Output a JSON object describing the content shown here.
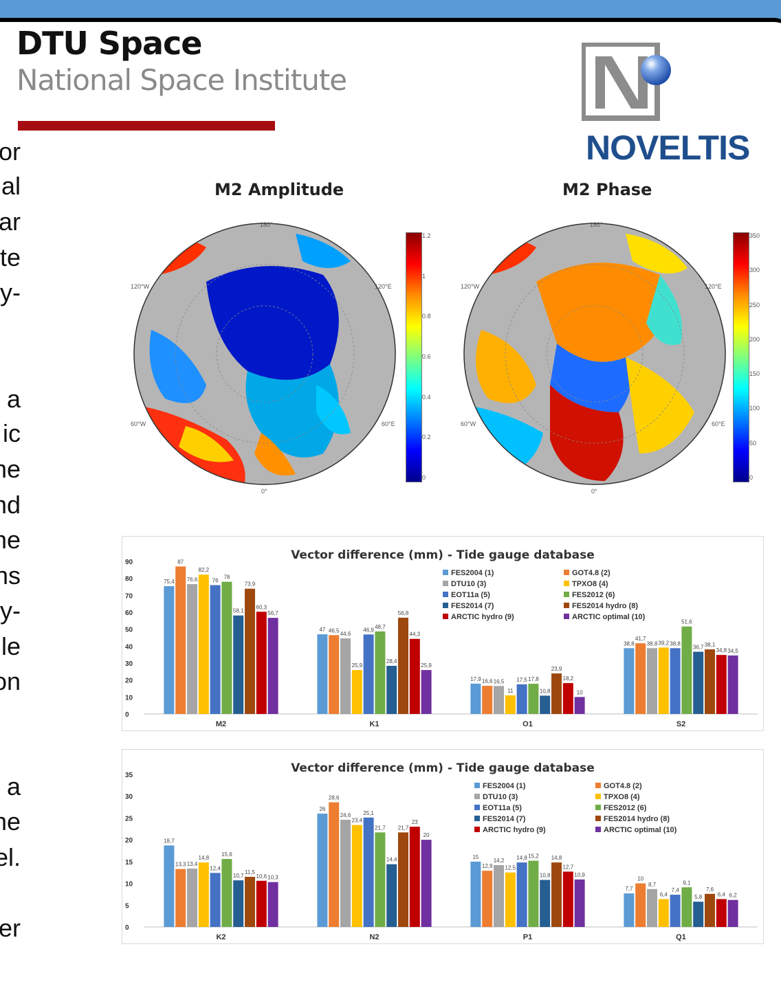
{
  "header": {
    "title": "DTU Space",
    "subtitle": "National Space Institute",
    "partner_logo": "NOVELTIS",
    "accent_color": "#a60d12",
    "band_color": "#5b9bd5"
  },
  "left_fragments": [
    "or",
    "al",
    "ar",
    "te",
    "y-",
    "a",
    "ic",
    "ne",
    "nd",
    "ne",
    "ns",
    "y-",
    "le",
    "on",
    "a",
    "ne",
    "el.",
    "er"
  ],
  "maps": [
    {
      "title": "M2 Amplitude",
      "colorbar": [
        "1.2",
        "1",
        "0.8",
        "0.6",
        "0.4",
        "0.2",
        "0"
      ],
      "lon_labels": [
        "180°",
        "120°W",
        "120°E",
        "60°W",
        "60°E",
        "0°"
      ]
    },
    {
      "title": "M2 Phase",
      "colorbar": [
        "350",
        "300",
        "250",
        "200",
        "150",
        "100",
        "50",
        "0"
      ],
      "lon_labels": [
        "180°",
        "120°W",
        "120°E",
        "60°W",
        "60°E",
        "0°"
      ]
    }
  ],
  "legend": [
    {
      "name": "FES2004 (1)",
      "color": "#5b9bd5"
    },
    {
      "name": "GOT4.8 (2)",
      "color": "#ed7d31"
    },
    {
      "name": "DTU10 (3)",
      "color": "#a5a5a5"
    },
    {
      "name": "TPXO8 (4)",
      "color": "#ffc000"
    },
    {
      "name": "EOT11a (5)",
      "color": "#4472c4"
    },
    {
      "name": "FES2012 (6)",
      "color": "#70ad47"
    },
    {
      "name": "FES2014 (7)",
      "color": "#255e91"
    },
    {
      "name": "FES2014 hydro (8)",
      "color": "#9e480e"
    },
    {
      "name": "ARCTIC hydro (9)",
      "color": "#c00000"
    },
    {
      "name": "ARCTIC optimal (10)",
      "color": "#7030a0"
    }
  ],
  "chart_data": [
    {
      "type": "bar",
      "title": "Vector difference (mm) - Tide gauge database",
      "categories": [
        "M2",
        "K1",
        "O1",
        "S2"
      ],
      "ylim": [
        0,
        90
      ],
      "yticks": [
        0,
        10,
        20,
        30,
        40,
        50,
        60,
        70,
        80,
        90
      ],
      "grid": false,
      "legend_position": "top-center",
      "series": [
        {
          "name": "FES2004 (1)",
          "values": [
            75.4,
            47,
            17.9,
            38.8
          ],
          "labels": [
            "75,4",
            "47",
            "17,9",
            "38,8"
          ]
        },
        {
          "name": "GOT4.8 (2)",
          "values": [
            87,
            46.5,
            16.6,
            41.7
          ],
          "labels": [
            "87",
            "46,5",
            "16,6",
            "41,7"
          ]
        },
        {
          "name": "DTU10 (3)",
          "values": [
            76.6,
            44.6,
            16.5,
            38.8
          ],
          "labels": [
            "76,6",
            "44,6",
            "16,5",
            "38,8"
          ]
        },
        {
          "name": "TPXO8 (4)",
          "values": [
            82.2,
            25.9,
            11,
            39.2
          ],
          "labels": [
            "82,2",
            "25,9",
            "11",
            "39,2"
          ]
        },
        {
          "name": "EOT11a (5)",
          "values": [
            76,
            46.9,
            17.5,
            38.8
          ],
          "labels": [
            "76",
            "46,9",
            "17,5",
            "38,8"
          ]
        },
        {
          "name": "FES2012 (6)",
          "values": [
            78,
            48.7,
            17.8,
            51.6
          ],
          "labels": [
            "78",
            "48,7",
            "17,8",
            "51,6"
          ]
        },
        {
          "name": "FES2014 (7)",
          "values": [
            58.1,
            28.4,
            10.8,
            36.7
          ],
          "labels": [
            "58,1",
            "28,4",
            "10,8",
            "36,7"
          ]
        },
        {
          "name": "FES2014 hydro (8)",
          "values": [
            73.9,
            56.8,
            23.9,
            38.1
          ],
          "labels": [
            "73,9",
            "56,8",
            "23,9",
            "38,1"
          ]
        },
        {
          "name": "ARCTIC hydro (9)",
          "values": [
            60.3,
            44.3,
            18.2,
            34.8
          ],
          "labels": [
            "60,3",
            "44,3",
            "18,2",
            "34,8"
          ]
        },
        {
          "name": "ARCTIC optimal (10)",
          "values": [
            56.7,
            25.9,
            10,
            34.5
          ],
          "labels": [
            "56,7",
            "25,9",
            "10",
            "34,5"
          ]
        }
      ]
    },
    {
      "type": "bar",
      "title": "Vector difference (mm) - Tide gauge database",
      "categories": [
        "K2",
        "N2",
        "P1",
        "Q1"
      ],
      "ylim": [
        0,
        35
      ],
      "yticks": [
        0,
        5,
        10,
        15,
        20,
        25,
        30,
        35
      ],
      "grid": false,
      "legend_position": "top-right",
      "series": [
        {
          "name": "FES2004 (1)",
          "values": [
            18.7,
            26,
            15,
            7.7
          ],
          "labels": [
            "18,7",
            "26",
            "15",
            "7,7"
          ]
        },
        {
          "name": "GOT4.8 (2)",
          "values": [
            13.3,
            28.6,
            12.9,
            10
          ],
          "labels": [
            "13,3",
            "28,6",
            "12,9",
            "10"
          ]
        },
        {
          "name": "DTU10 (3)",
          "values": [
            13.4,
            24.6,
            14.2,
            8.7
          ],
          "labels": [
            "13,4",
            "24,6",
            "14,2",
            "8,7"
          ]
        },
        {
          "name": "TPXO8 (4)",
          "values": [
            14.8,
            23.4,
            12.5,
            6.4
          ],
          "labels": [
            "14,8",
            "23,4",
            "12,5",
            "6,4"
          ]
        },
        {
          "name": "EOT11a (5)",
          "values": [
            12.4,
            25.1,
            14.8,
            7.4
          ],
          "labels": [
            "12,4",
            "25,1",
            "14,8",
            "7,4"
          ]
        },
        {
          "name": "FES2012 (6)",
          "values": [
            15.6,
            21.7,
            15.2,
            9.1
          ],
          "labels": [
            "15,6",
            "21,7",
            "15,2",
            "9,1"
          ]
        },
        {
          "name": "FES2014 (7)",
          "values": [
            10.7,
            14.4,
            10.8,
            5.8
          ],
          "labels": [
            "10,7",
            "14,4",
            "10,8",
            "5,8"
          ]
        },
        {
          "name": "FES2014 hydro (8)",
          "values": [
            11.5,
            21.7,
            14.8,
            7.6
          ],
          "labels": [
            "11,5",
            "21,7",
            "14,8",
            "7,6"
          ]
        },
        {
          "name": "ARCTIC hydro (9)",
          "values": [
            10.6,
            23,
            12.7,
            6.4
          ],
          "labels": [
            "10,6",
            "23",
            "12,7",
            "6,4"
          ]
        },
        {
          "name": "ARCTIC optimal (10)",
          "values": [
            10.3,
            20,
            10.9,
            6.2
          ],
          "labels": [
            "10,3",
            "20",
            "10,9",
            "6,2"
          ]
        }
      ]
    }
  ]
}
